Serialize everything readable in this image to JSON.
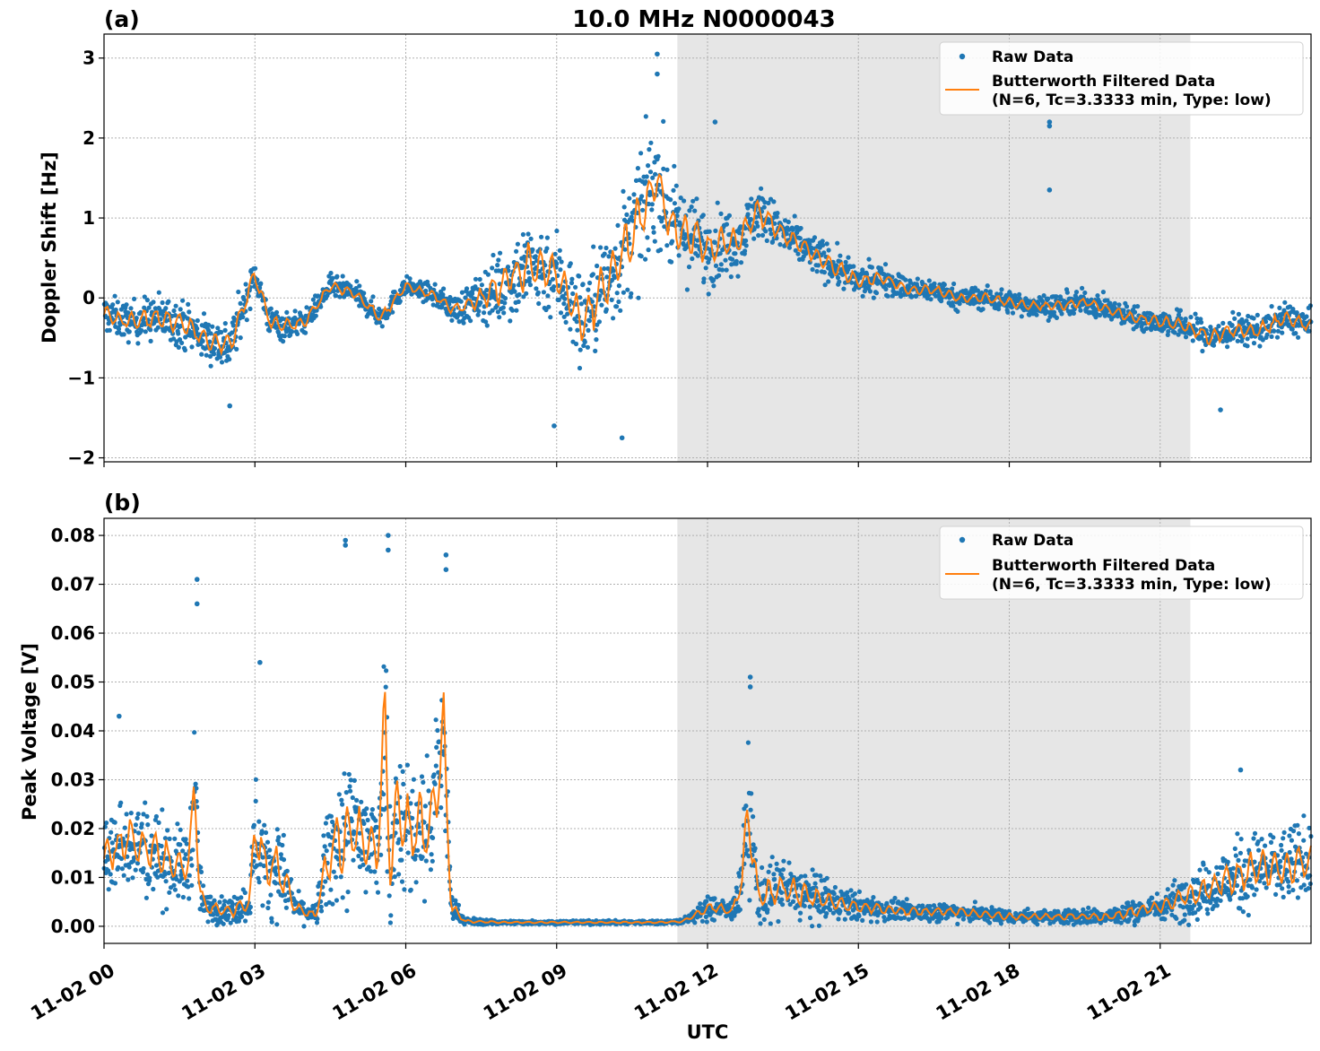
{
  "figure": {
    "title": "10.0 MHz N0000043",
    "xlabel": "UTC"
  },
  "colors": {
    "raw": "#1f77b4",
    "filtered": "#ff7f0e",
    "shade": "#e6e6e6"
  },
  "chart_data": [
    {
      "type": "scatter",
      "panel_tag": "(a)",
      "title": "10.0 MHz N0000043",
      "ylabel": "Doppler Shift [Hz]",
      "xlabel": "",
      "x_range_hours": [
        0,
        24
      ],
      "ylim": [
        -2.05,
        3.3
      ],
      "yticks": [
        3,
        2,
        1,
        0,
        -1,
        -2
      ],
      "ytick_labels": [
        "3",
        "2",
        "1",
        "0",
        "−1",
        "−2"
      ],
      "xticks_hours": [
        0,
        3,
        6,
        9,
        12,
        15,
        18,
        21
      ],
      "grid": true,
      "legend_placement": "top-right",
      "shaded_span_hours": [
        11.4,
        21.6
      ],
      "series": [
        {
          "name": "Raw Data",
          "style": "points",
          "x": [
            0.0,
            0.5,
            1.0,
            1.5,
            2.0,
            2.5,
            3.0,
            3.3,
            3.6,
            4.0,
            4.5,
            5.0,
            5.5,
            6.0,
            6.5,
            7.0,
            7.5,
            8.0,
            8.5,
            9.0,
            9.5,
            10.0,
            10.5,
            11.0,
            11.3,
            11.6,
            12.0,
            12.3,
            12.6,
            13.0,
            13.5,
            14.0,
            14.5,
            15.0,
            15.5,
            16.0,
            16.5,
            17.0,
            17.5,
            18.0,
            18.5,
            19.0,
            19.5,
            20.0,
            20.5,
            21.0,
            21.5,
            22.0,
            22.5,
            23.0,
            23.5,
            24.0
          ],
          "y": [
            -0.2,
            -0.3,
            -0.25,
            -0.3,
            -0.5,
            -0.6,
            0.3,
            -0.3,
            -0.35,
            -0.3,
            0.15,
            0.05,
            -0.25,
            0.15,
            0.05,
            -0.15,
            0.0,
            0.2,
            0.4,
            0.3,
            -0.3,
            0.2,
            0.8,
            1.5,
            0.9,
            0.8,
            0.6,
            0.7,
            0.7,
            1.1,
            0.8,
            0.6,
            0.4,
            0.2,
            0.25,
            0.1,
            0.1,
            0.0,
            0.0,
            -0.05,
            -0.1,
            -0.1,
            -0.05,
            -0.15,
            -0.25,
            -0.3,
            -0.35,
            -0.5,
            -0.4,
            -0.4,
            -0.25,
            -0.35
          ],
          "spread": [
            0.25,
            0.25,
            0.3,
            0.3,
            0.3,
            0.35,
            0.2,
            0.2,
            0.2,
            0.15,
            0.15,
            0.15,
            0.15,
            0.12,
            0.12,
            0.2,
            0.3,
            0.55,
            0.6,
            0.6,
            0.65,
            0.7,
            0.8,
            0.8,
            0.65,
            0.6,
            0.5,
            0.45,
            0.4,
            0.35,
            0.3,
            0.25,
            0.25,
            0.2,
            0.2,
            0.15,
            0.15,
            0.15,
            0.15,
            0.15,
            0.15,
            0.15,
            0.15,
            0.15,
            0.15,
            0.15,
            0.2,
            0.2,
            0.2,
            0.2,
            0.2,
            0.2
          ],
          "outliers": [
            {
              "x": 11.0,
              "y": 3.05
            },
            {
              "x": 11.0,
              "y": 2.8
            },
            {
              "x": 12.15,
              "y": 2.2
            },
            {
              "x": 18.8,
              "y": 2.2
            },
            {
              "x": 18.8,
              "y": 2.15
            },
            {
              "x": 18.8,
              "y": 1.35
            },
            {
              "x": 10.3,
              "y": -1.75
            },
            {
              "x": 8.95,
              "y": -1.6
            },
            {
              "x": 2.5,
              "y": -1.35
            },
            {
              "x": 22.2,
              "y": -1.4
            }
          ]
        },
        {
          "name": "Butterworth Filtered Data\n(N=6, Tc=3.3333 min, Type: low)",
          "style": "line",
          "x": [
            0.0,
            0.5,
            1.0,
            1.5,
            2.0,
            2.5,
            3.0,
            3.3,
            3.6,
            4.0,
            4.5,
            5.0,
            5.5,
            6.0,
            6.5,
            7.0,
            7.5,
            8.0,
            8.5,
            9.0,
            9.5,
            10.0,
            10.5,
            11.0,
            11.3,
            11.6,
            12.0,
            12.3,
            12.6,
            13.0,
            13.5,
            14.0,
            14.5,
            15.0,
            15.5,
            16.0,
            16.5,
            17.0,
            17.5,
            18.0,
            18.5,
            19.0,
            19.5,
            20.0,
            20.5,
            21.0,
            21.5,
            22.0,
            22.5,
            23.0,
            23.5,
            24.0
          ],
          "y": [
            -0.2,
            -0.3,
            -0.25,
            -0.3,
            -0.5,
            -0.6,
            0.3,
            -0.3,
            -0.35,
            -0.3,
            0.15,
            0.05,
            -0.25,
            0.15,
            0.05,
            -0.15,
            0.0,
            0.2,
            0.4,
            0.3,
            -0.3,
            0.2,
            0.8,
            1.5,
            0.9,
            0.8,
            0.6,
            0.7,
            0.7,
            1.1,
            0.8,
            0.6,
            0.4,
            0.2,
            0.25,
            0.1,
            0.1,
            0.0,
            0.0,
            -0.05,
            -0.1,
            -0.1,
            -0.05,
            -0.15,
            -0.25,
            -0.3,
            -0.35,
            -0.5,
            -0.4,
            -0.4,
            -0.25,
            -0.35
          ]
        }
      ]
    },
    {
      "type": "scatter",
      "panel_tag": "(b)",
      "title": "",
      "ylabel": "Peak Voltage [V]",
      "xlabel": "UTC",
      "x_range_hours": [
        0,
        24
      ],
      "ylim": [
        -0.0035,
        0.0835
      ],
      "yticks": [
        0.0,
        0.01,
        0.02,
        0.03,
        0.04,
        0.05,
        0.06,
        0.07,
        0.08
      ],
      "ytick_labels": [
        "0.00",
        "0.01",
        "0.02",
        "0.03",
        "0.04",
        "0.05",
        "0.06",
        "0.07",
        "0.08"
      ],
      "xticks_hours": [
        0,
        3,
        6,
        9,
        12,
        15,
        18,
        21
      ],
      "xtick_labels": [
        "11-02 00",
        "11-02 03",
        "11-02 06",
        "11-02 09",
        "11-02 12",
        "11-02 15",
        "11-02 18",
        "11-02 21"
      ],
      "grid": true,
      "legend_placement": "top-right",
      "shaded_span_hours": [
        11.4,
        21.6
      ],
      "series": [
        {
          "name": "Raw Data",
          "style": "points",
          "x": [
            0.0,
            0.5,
            1.0,
            1.5,
            1.7,
            1.8,
            1.9,
            2.0,
            2.5,
            2.9,
            3.0,
            3.2,
            3.5,
            3.8,
            4.2,
            4.5,
            5.0,
            5.4,
            5.6,
            5.7,
            5.8,
            6.0,
            6.5,
            6.75,
            6.9,
            7.2,
            8.0,
            9.0,
            10.0,
            11.0,
            11.5,
            11.9,
            12.1,
            12.5,
            12.7,
            12.8,
            13.0,
            13.5,
            14.0,
            14.5,
            15.0,
            16.0,
            17.0,
            18.0,
            19.0,
            20.0,
            21.0,
            21.5,
            22.0,
            22.5,
            23.0,
            23.5,
            24.0
          ],
          "y": [
            0.014,
            0.018,
            0.015,
            0.012,
            0.013,
            0.03,
            0.008,
            0.004,
            0.003,
            0.005,
            0.02,
            0.012,
            0.012,
            0.004,
            0.002,
            0.016,
            0.02,
            0.015,
            0.04,
            0.01,
            0.025,
            0.02,
            0.02,
            0.04,
            0.004,
            0.001,
            0.0008,
            0.0008,
            0.0008,
            0.0008,
            0.001,
            0.003,
            0.004,
            0.003,
            0.01,
            0.025,
            0.006,
            0.008,
            0.006,
            0.005,
            0.004,
            0.003,
            0.003,
            0.002,
            0.002,
            0.002,
            0.004,
            0.006,
            0.008,
            0.01,
            0.012,
            0.012,
            0.014
          ],
          "spread": [
            0.009,
            0.01,
            0.01,
            0.008,
            0.009,
            0.015,
            0.006,
            0.003,
            0.003,
            0.004,
            0.012,
            0.01,
            0.01,
            0.003,
            0.002,
            0.014,
            0.016,
            0.016,
            0.025,
            0.01,
            0.016,
            0.016,
            0.016,
            0.02,
            0.003,
            0.0008,
            0.0004,
            0.0004,
            0.0004,
            0.0004,
            0.0005,
            0.002,
            0.003,
            0.002,
            0.008,
            0.015,
            0.006,
            0.007,
            0.006,
            0.004,
            0.003,
            0.002,
            0.002,
            0.0015,
            0.0015,
            0.002,
            0.003,
            0.005,
            0.006,
            0.008,
            0.008,
            0.008,
            0.009
          ],
          "outliers": [
            {
              "x": 0.3,
              "y": 0.043
            },
            {
              "x": 1.85,
              "y": 0.071
            },
            {
              "x": 1.85,
              "y": 0.066
            },
            {
              "x": 3.1,
              "y": 0.054
            },
            {
              "x": 4.8,
              "y": 0.079
            },
            {
              "x": 4.8,
              "y": 0.078
            },
            {
              "x": 5.65,
              "y": 0.08
            },
            {
              "x": 5.65,
              "y": 0.077
            },
            {
              "x": 6.8,
              "y": 0.076
            },
            {
              "x": 6.8,
              "y": 0.073
            },
            {
              "x": 12.85,
              "y": 0.051
            },
            {
              "x": 12.85,
              "y": 0.049
            },
            {
              "x": 22.6,
              "y": 0.032
            }
          ]
        },
        {
          "name": "Butterworth Filtered Data\n(N=6, Tc=3.3333 min, Type: low)",
          "style": "line",
          "x": [
            0.0,
            0.5,
            1.0,
            1.5,
            1.7,
            1.8,
            1.9,
            2.0,
            2.5,
            2.9,
            3.0,
            3.2,
            3.5,
            3.8,
            4.2,
            4.5,
            5.0,
            5.4,
            5.6,
            5.7,
            5.8,
            6.0,
            6.5,
            6.75,
            6.9,
            7.2,
            8.0,
            9.0,
            10.0,
            11.0,
            11.5,
            11.9,
            12.1,
            12.5,
            12.7,
            12.8,
            13.0,
            13.5,
            14.0,
            14.5,
            15.0,
            16.0,
            17.0,
            18.0,
            19.0,
            20.0,
            21.0,
            21.5,
            22.0,
            22.5,
            23.0,
            23.5,
            24.0
          ],
          "y": [
            0.014,
            0.018,
            0.015,
            0.012,
            0.013,
            0.03,
            0.008,
            0.004,
            0.003,
            0.005,
            0.02,
            0.012,
            0.012,
            0.004,
            0.002,
            0.016,
            0.02,
            0.015,
            0.04,
            0.01,
            0.025,
            0.02,
            0.02,
            0.04,
            0.004,
            0.001,
            0.0008,
            0.0008,
            0.0008,
            0.0008,
            0.001,
            0.003,
            0.004,
            0.003,
            0.01,
            0.025,
            0.006,
            0.008,
            0.006,
            0.005,
            0.004,
            0.003,
            0.003,
            0.002,
            0.002,
            0.002,
            0.004,
            0.006,
            0.008,
            0.01,
            0.012,
            0.012,
            0.014
          ]
        }
      ]
    }
  ]
}
